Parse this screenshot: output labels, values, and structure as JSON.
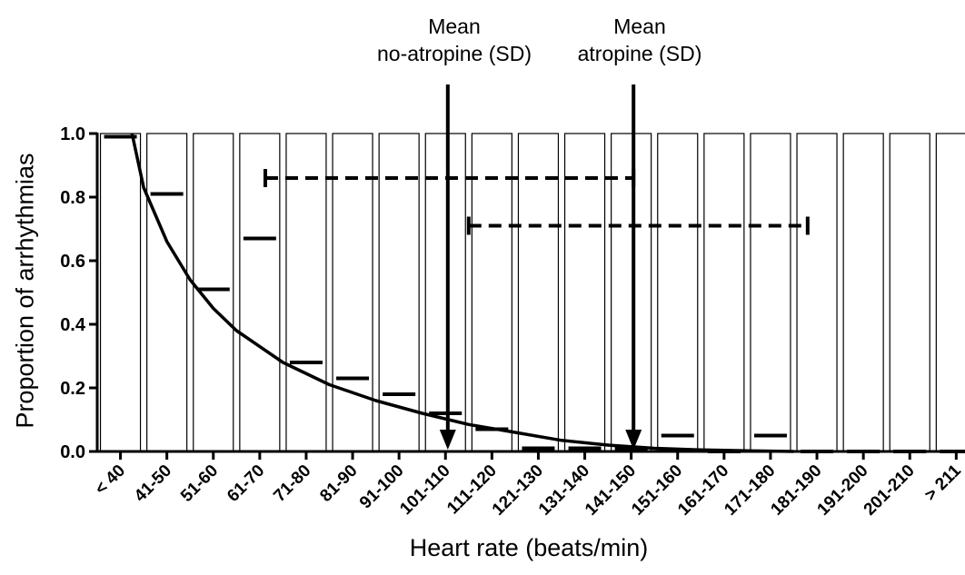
{
  "chart_data": {
    "type": "bar",
    "title": "",
    "xlabel": "Heart rate (beats/min)",
    "ylabel": "Proportion of arrhythmias",
    "ylim": [
      0,
      1.0
    ],
    "yticks": [
      "0.0",
      "0.2",
      "0.4",
      "0.6",
      "0.8",
      "1.0"
    ],
    "categories": [
      "< 40",
      "41-50",
      "51-60",
      "61-70",
      "71-80",
      "81-90",
      "91-100",
      "101-110",
      "111-120",
      "121-130",
      "131-140",
      "141-150",
      "151-160",
      "161-170",
      "171-180",
      "181-190",
      "191-200",
      "201-210",
      "> 211"
    ],
    "bar_values": [
      1.0,
      1.0,
      1.0,
      1.0,
      1.0,
      1.0,
      1.0,
      1.0,
      1.0,
      1.0,
      1.0,
      1.0,
      1.0,
      1.0,
      1.0,
      1.0,
      1.0,
      1.0,
      1.0
    ],
    "observed_proportions": [
      0.99,
      0.81,
      0.51,
      0.67,
      0.28,
      0.23,
      0.18,
      0.12,
      0.07,
      0.01,
      0.01,
      0.01,
      0.05,
      0.0,
      0.05,
      0.0,
      0.0,
      0.0,
      0.0
    ],
    "fitted_curve": {
      "x": [
        0.75,
        1,
        1.5,
        2,
        2.5,
        3,
        4,
        5,
        6,
        7,
        8,
        9,
        10,
        11,
        12,
        13,
        14,
        15
      ],
      "y": [
        1.0,
        0.83,
        0.66,
        0.54,
        0.45,
        0.38,
        0.28,
        0.21,
        0.16,
        0.12,
        0.085,
        0.06,
        0.035,
        0.02,
        0.01,
        0.005,
        0.002,
        0.0
      ]
    },
    "annotations": [
      {
        "id": "no-atropine",
        "text_lines": [
          "Mean",
          "no-atropine (SD)"
        ],
        "mean_category_index": 7.55,
        "sd_range": [
          3.62,
          11.55
        ],
        "sd_y": 0.86
      },
      {
        "id": "atropine",
        "text_lines": [
          "Mean",
          "atropine (SD)"
        ],
        "mean_category_index": 11.55,
        "sd_range": [
          8.0,
          15.3
        ],
        "sd_y": 0.71
      }
    ]
  },
  "colors": {
    "bar_fill": "#ffffff",
    "bar_stroke": "#000000",
    "first_bar_fill": "#000000",
    "line": "#000000"
  }
}
